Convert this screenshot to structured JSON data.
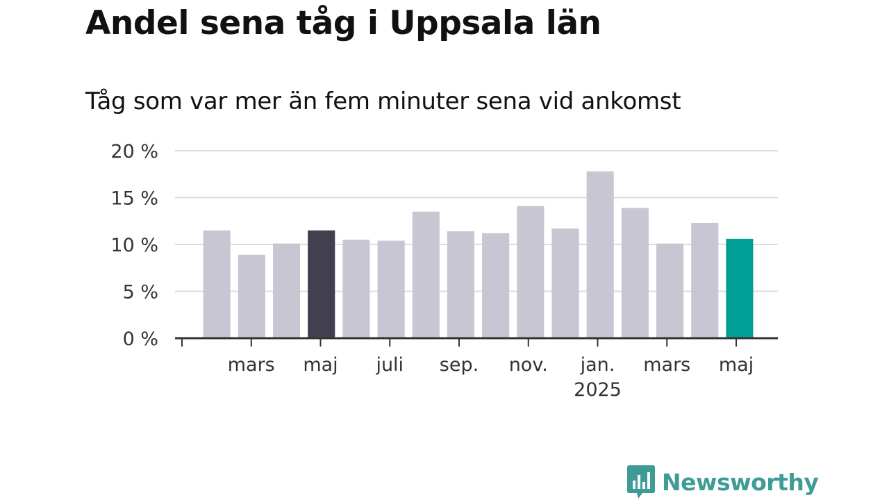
{
  "title": "Andel sena tåg i Uppsala län",
  "subtitle": "Tåg som var mer än fem minuter sena vid ankomst",
  "brand": {
    "name": "Newsworthy",
    "icon": "bar-chart-speech-bubble-icon",
    "color": "#3f9b96"
  },
  "chart_data": {
    "type": "bar",
    "title": "Andel sena tåg i Uppsala län",
    "subtitle": "Tåg som var mer än fem minuter sena vid ankomst",
    "xlabel": "",
    "ylabel": "",
    "ylim": [
      0,
      20
    ],
    "yticks": [
      0,
      5,
      10,
      15,
      20
    ],
    "ytick_labels": [
      "0 %",
      "5 %",
      "10 %",
      "15 %",
      "20 %"
    ],
    "grid": true,
    "categories": [
      "2024-02",
      "2024-03",
      "2024-04",
      "2024-05",
      "2024-06",
      "2024-07",
      "2024-08",
      "2024-09",
      "2024-10",
      "2024-11",
      "2024-12",
      "2025-01",
      "2025-02",
      "2025-03",
      "2025-04",
      "2025-05"
    ],
    "values": [
      11.5,
      8.9,
      10.1,
      11.5,
      10.5,
      10.4,
      13.5,
      11.4,
      11.2,
      14.1,
      11.7,
      17.8,
      13.9,
      10.1,
      12.3,
      10.6
    ],
    "bar_colors": [
      "#c8c6d2",
      "#c8c6d2",
      "#c8c6d2",
      "#41404e",
      "#c8c6d2",
      "#c8c6d2",
      "#c8c6d2",
      "#c8c6d2",
      "#c8c6d2",
      "#c8c6d2",
      "#c8c6d2",
      "#c8c6d2",
      "#c8c6d2",
      "#c8c6d2",
      "#c8c6d2",
      "#00a096"
    ],
    "xtick_labels": [
      "",
      "mars",
      "maj",
      "juli",
      "sep.",
      "nov.",
      "jan.",
      "mars",
      "maj"
    ],
    "xtick_sublabels": [
      "",
      "",
      "",
      "",
      "",
      "",
      "2025",
      "",
      ""
    ]
  }
}
